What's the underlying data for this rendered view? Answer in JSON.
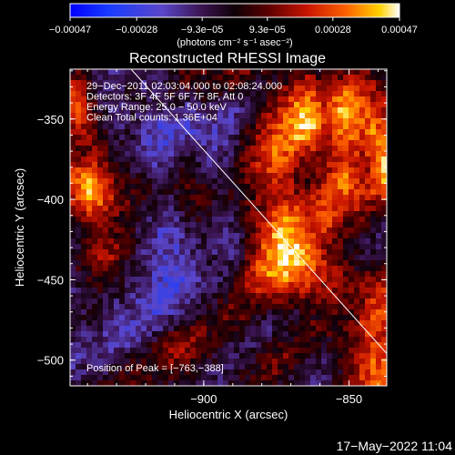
{
  "colorbar": {
    "ticks": [
      "−0.00047",
      "−0.00028",
      "−9.3e−05",
      "9.3e−05",
      "0.00028",
      "0.00047"
    ],
    "values": [
      -0.00047,
      -0.00028,
      -9.3e-05,
      9.3e-05,
      0.00028,
      0.00047
    ],
    "range": [
      -0.00047,
      0.00047
    ],
    "unit_label": "(photons cm⁻² s⁻¹ asec⁻²)"
  },
  "chart_data": {
    "type": "heatmap",
    "title": "Reconstructed RHESSI Image",
    "xlabel": "Heliocentric X (arcsec)",
    "ylabel": "Heliocentric Y (arcsec)",
    "xlim": [
      -946,
      -837
    ],
    "ylim": [
      -516,
      -319
    ],
    "x_ticks": [
      -900,
      -850,
      -800
    ],
    "x_tick_labels": [
      "−900",
      "−850",
      "−800"
    ],
    "y_ticks": [
      -350,
      -400,
      -450,
      -500
    ],
    "y_tick_labels": [
      "−350",
      "−400",
      "−450",
      "−500"
    ],
    "colormap": "RHESSI blue-red-yellow",
    "annotations": [
      "29−Dec−2011 02:03:04.000 to 02:08:24.000",
      "Detectors: 3F 4F 5F 6F 7F 8F, Att 0",
      "Energy Range: 25.0 − 50.0 keV",
      "Clean     Total counts: 1.36E+04"
    ],
    "peak_label": "Position of Peak = [−763,−388]",
    "limb_line": [
      [
        -925,
        -319
      ],
      [
        -827,
        -516
      ]
    ],
    "intensity_grid_fraction": [
      [
        0.55,
        0.6,
        0.45,
        0.4,
        0.35,
        0.4,
        0.5,
        0.45,
        0.4,
        0.35,
        0.45,
        0.55,
        0.6,
        0.6,
        0.55,
        0.55,
        0.6,
        0.65,
        0.6,
        0.55,
        0.5,
        0.45,
        0.5,
        0.55,
        0.6,
        0.55,
        0.5,
        0.55,
        0.6,
        0.65,
        0.6,
        0.55,
        0.5
      ],
      [
        0.7,
        0.65,
        0.5,
        0.4,
        0.35,
        0.4,
        0.45,
        0.4,
        0.35,
        0.4,
        0.45,
        0.5,
        0.55,
        0.5,
        0.5,
        0.55,
        0.6,
        0.55,
        0.5,
        0.45,
        0.5,
        0.55,
        0.6,
        0.65,
        0.75,
        0.7,
        0.6,
        0.65,
        0.7,
        0.75,
        0.7,
        0.65,
        0.6
      ],
      [
        0.75,
        0.7,
        0.55,
        0.45,
        0.35,
        0.4,
        0.5,
        0.45,
        0.4,
        0.45,
        0.5,
        0.45,
        0.4,
        0.45,
        0.5,
        0.45,
        0.4,
        0.4,
        0.45,
        0.5,
        0.55,
        0.6,
        0.7,
        0.8,
        0.85,
        0.8,
        0.7,
        0.8,
        0.9,
        0.85,
        0.75,
        0.7,
        0.65
      ],
      [
        0.8,
        0.75,
        0.6,
        0.45,
        0.35,
        0.4,
        0.45,
        0.4,
        0.35,
        0.4,
        0.4,
        0.35,
        0.3,
        0.35,
        0.4,
        0.35,
        0.3,
        0.35,
        0.45,
        0.55,
        0.65,
        0.7,
        0.8,
        0.9,
        0.95,
        0.85,
        0.75,
        0.85,
        0.95,
        0.9,
        0.8,
        0.75,
        0.7
      ],
      [
        0.7,
        0.7,
        0.6,
        0.5,
        0.4,
        0.4,
        0.45,
        0.4,
        0.3,
        0.25,
        0.3,
        0.3,
        0.25,
        0.3,
        0.35,
        0.3,
        0.3,
        0.4,
        0.5,
        0.6,
        0.7,
        0.75,
        0.85,
        0.95,
        0.95,
        0.9,
        0.75,
        0.8,
        0.9,
        0.85,
        0.8,
        0.85,
        0.75
      ],
      [
        0.6,
        0.65,
        0.6,
        0.55,
        0.45,
        0.45,
        0.45,
        0.35,
        0.3,
        0.25,
        0.25,
        0.3,
        0.35,
        0.35,
        0.3,
        0.3,
        0.35,
        0.45,
        0.55,
        0.65,
        0.75,
        0.8,
        0.85,
        0.9,
        0.85,
        0.8,
        0.7,
        0.75,
        0.8,
        0.8,
        0.75,
        0.85,
        0.9
      ],
      [
        0.55,
        0.6,
        0.65,
        0.6,
        0.5,
        0.45,
        0.4,
        0.35,
        0.3,
        0.3,
        0.35,
        0.4,
        0.45,
        0.4,
        0.35,
        0.35,
        0.4,
        0.5,
        0.6,
        0.7,
        0.8,
        0.85,
        0.8,
        0.75,
        0.7,
        0.65,
        0.65,
        0.7,
        0.75,
        0.75,
        0.7,
        0.8,
        0.9
      ],
      [
        0.7,
        0.75,
        0.75,
        0.65,
        0.55,
        0.5,
        0.45,
        0.4,
        0.35,
        0.35,
        0.4,
        0.45,
        0.5,
        0.45,
        0.4,
        0.4,
        0.45,
        0.55,
        0.65,
        0.7,
        0.75,
        0.8,
        0.75,
        0.65,
        0.6,
        0.6,
        0.65,
        0.75,
        0.8,
        0.7,
        0.65,
        0.75,
        0.95
      ],
      [
        0.8,
        0.85,
        0.9,
        0.8,
        0.65,
        0.55,
        0.5,
        0.5,
        0.45,
        0.4,
        0.45,
        0.5,
        0.55,
        0.5,
        0.45,
        0.45,
        0.5,
        0.55,
        0.6,
        0.65,
        0.7,
        0.75,
        0.7,
        0.6,
        0.55,
        0.6,
        0.7,
        0.8,
        0.85,
        0.75,
        0.7,
        0.8,
        0.9
      ],
      [
        0.75,
        0.85,
        0.95,
        0.85,
        0.7,
        0.6,
        0.55,
        0.55,
        0.5,
        0.45,
        0.45,
        0.5,
        0.55,
        0.55,
        0.5,
        0.45,
        0.5,
        0.5,
        0.55,
        0.6,
        0.65,
        0.7,
        0.7,
        0.65,
        0.65,
        0.7,
        0.75,
        0.8,
        0.8,
        0.75,
        0.7,
        0.75,
        0.8
      ],
      [
        0.65,
        0.75,
        0.8,
        0.75,
        0.65,
        0.6,
        0.55,
        0.5,
        0.45,
        0.4,
        0.4,
        0.45,
        0.5,
        0.55,
        0.5,
        0.45,
        0.45,
        0.5,
        0.55,
        0.6,
        0.65,
        0.75,
        0.8,
        0.75,
        0.7,
        0.75,
        0.8,
        0.75,
        0.7,
        0.7,
        0.65,
        0.6,
        0.55
      ],
      [
        0.55,
        0.6,
        0.65,
        0.65,
        0.6,
        0.55,
        0.5,
        0.45,
        0.4,
        0.35,
        0.35,
        0.4,
        0.45,
        0.5,
        0.45,
        0.4,
        0.4,
        0.45,
        0.55,
        0.65,
        0.75,
        0.85,
        0.9,
        0.85,
        0.75,
        0.75,
        0.8,
        0.7,
        0.6,
        0.6,
        0.55,
        0.5,
        0.45
      ],
      [
        0.45,
        0.5,
        0.55,
        0.6,
        0.6,
        0.55,
        0.5,
        0.4,
        0.35,
        0.3,
        0.3,
        0.35,
        0.4,
        0.45,
        0.4,
        0.35,
        0.35,
        0.4,
        0.5,
        0.65,
        0.8,
        0.9,
        0.95,
        0.9,
        0.8,
        0.7,
        0.7,
        0.65,
        0.55,
        0.55,
        0.5,
        0.45,
        0.4
      ],
      [
        0.45,
        0.5,
        0.6,
        0.65,
        0.65,
        0.6,
        0.5,
        0.4,
        0.35,
        0.3,
        0.3,
        0.3,
        0.35,
        0.4,
        0.4,
        0.35,
        0.35,
        0.4,
        0.55,
        0.7,
        0.85,
        0.95,
        1.0,
        0.95,
        0.85,
        0.75,
        0.65,
        0.6,
        0.55,
        0.5,
        0.45,
        0.4,
        0.4
      ],
      [
        0.5,
        0.55,
        0.65,
        0.7,
        0.65,
        0.55,
        0.45,
        0.4,
        0.35,
        0.3,
        0.25,
        0.3,
        0.35,
        0.4,
        0.45,
        0.4,
        0.4,
        0.45,
        0.6,
        0.75,
        0.85,
        0.95,
        1.0,
        0.95,
        0.9,
        0.8,
        0.7,
        0.65,
        0.55,
        0.5,
        0.45,
        0.45,
        0.5
      ],
      [
        0.45,
        0.5,
        0.55,
        0.6,
        0.55,
        0.5,
        0.45,
        0.4,
        0.35,
        0.3,
        0.25,
        0.25,
        0.3,
        0.35,
        0.4,
        0.4,
        0.45,
        0.55,
        0.65,
        0.75,
        0.85,
        0.9,
        0.9,
        0.85,
        0.8,
        0.75,
        0.7,
        0.65,
        0.6,
        0.55,
        0.55,
        0.6,
        0.65
      ],
      [
        0.4,
        0.45,
        0.5,
        0.5,
        0.45,
        0.45,
        0.4,
        0.35,
        0.3,
        0.25,
        0.2,
        0.25,
        0.3,
        0.35,
        0.4,
        0.45,
        0.5,
        0.6,
        0.65,
        0.7,
        0.75,
        0.75,
        0.75,
        0.7,
        0.7,
        0.7,
        0.65,
        0.65,
        0.6,
        0.6,
        0.65,
        0.7,
        0.7
      ],
      [
        0.4,
        0.45,
        0.45,
        0.45,
        0.4,
        0.4,
        0.35,
        0.3,
        0.25,
        0.25,
        0.25,
        0.3,
        0.35,
        0.4,
        0.45,
        0.5,
        0.55,
        0.6,
        0.6,
        0.6,
        0.6,
        0.6,
        0.6,
        0.55,
        0.55,
        0.6,
        0.6,
        0.6,
        0.55,
        0.6,
        0.65,
        0.75,
        0.75
      ],
      [
        0.45,
        0.45,
        0.45,
        0.4,
        0.4,
        0.35,
        0.35,
        0.3,
        0.25,
        0.3,
        0.35,
        0.4,
        0.45,
        0.5,
        0.5,
        0.55,
        0.6,
        0.6,
        0.55,
        0.5,
        0.45,
        0.45,
        0.45,
        0.45,
        0.5,
        0.55,
        0.55,
        0.55,
        0.55,
        0.6,
        0.7,
        0.8,
        0.8
      ],
      [
        0.45,
        0.4,
        0.4,
        0.4,
        0.35,
        0.3,
        0.3,
        0.3,
        0.35,
        0.4,
        0.45,
        0.55,
        0.6,
        0.6,
        0.55,
        0.55,
        0.55,
        0.5,
        0.45,
        0.4,
        0.4,
        0.4,
        0.45,
        0.5,
        0.55,
        0.6,
        0.6,
        0.55,
        0.55,
        0.65,
        0.75,
        0.8,
        0.75
      ],
      [
        0.4,
        0.4,
        0.35,
        0.35,
        0.3,
        0.3,
        0.35,
        0.4,
        0.45,
        0.55,
        0.65,
        0.7,
        0.65,
        0.6,
        0.55,
        0.5,
        0.45,
        0.45,
        0.4,
        0.4,
        0.45,
        0.5,
        0.55,
        0.55,
        0.5,
        0.5,
        0.5,
        0.5,
        0.55,
        0.6,
        0.7,
        0.75,
        0.7
      ],
      [
        0.35,
        0.35,
        0.35,
        0.35,
        0.35,
        0.4,
        0.45,
        0.5,
        0.55,
        0.6,
        0.65,
        0.65,
        0.6,
        0.55,
        0.5,
        0.45,
        0.4,
        0.4,
        0.45,
        0.5,
        0.55,
        0.6,
        0.6,
        0.55,
        0.5,
        0.45,
        0.45,
        0.5,
        0.55,
        0.65,
        0.75,
        0.8,
        0.75
      ],
      [
        0.35,
        0.4,
        0.4,
        0.4,
        0.45,
        0.5,
        0.55,
        0.55,
        0.55,
        0.55,
        0.55,
        0.55,
        0.5,
        0.45,
        0.45,
        0.4,
        0.4,
        0.45,
        0.5,
        0.55,
        0.6,
        0.6,
        0.55,
        0.5,
        0.45,
        0.4,
        0.4,
        0.45,
        0.55,
        0.65,
        0.75,
        0.8,
        0.8
      ],
      [
        0.4,
        0.45,
        0.45,
        0.5,
        0.55,
        0.6,
        0.6,
        0.55,
        0.5,
        0.5,
        0.5,
        0.45,
        0.45,
        0.4,
        0.4,
        0.4,
        0.45,
        0.5,
        0.55,
        0.55,
        0.55,
        0.5,
        0.45,
        0.4,
        0.4,
        0.4,
        0.45,
        0.5,
        0.6,
        0.7,
        0.75,
        0.8,
        0.85
      ]
    ]
  },
  "timestamp": "17−May−2022 11:04"
}
